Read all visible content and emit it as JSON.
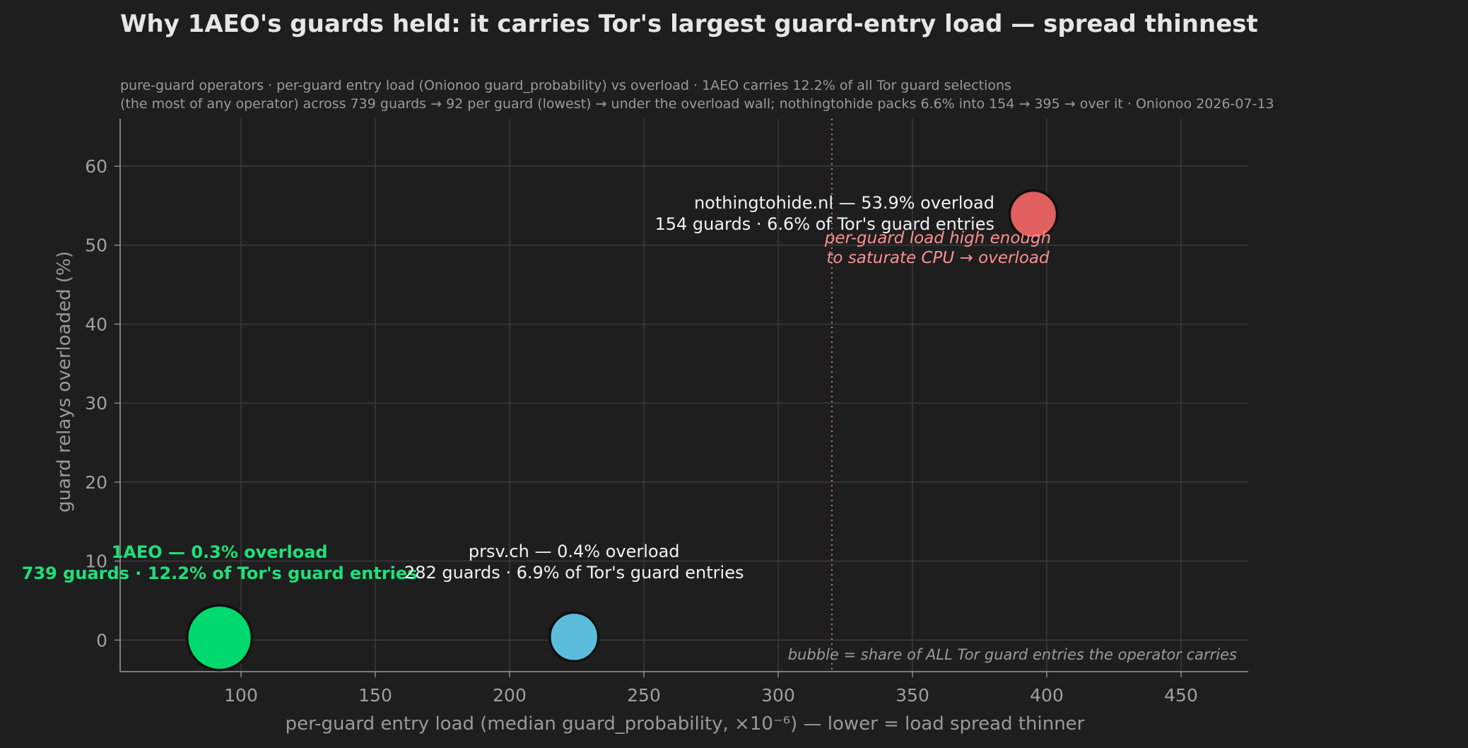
{
  "chart_data": {
    "type": "scatter",
    "title": "Why 1AEO's guards held: it carries Tor's largest guard-entry load — spread thinnest",
    "subtitle": [
      "pure-guard operators · per-guard entry load (Onionoo guard_probability) vs overload · 1AEO carries 12.2% of all Tor guard selections",
      "(the most of any operator) across 739 guards → 92 per guard (lowest) → under the overload wall; nothingtohide packs 6.6% into 154 → 395 → over it · Onionoo 2026-07-13"
    ],
    "xlabel": "per-guard entry load  (median guard_probability, ×10⁻⁶)  — lower = load spread thinner",
    "ylabel": "guard relays overloaded  (%)",
    "xlim": [
      55,
      475
    ],
    "ylim": [
      -4,
      66
    ],
    "xticks": [
      100,
      150,
      200,
      250,
      300,
      350,
      400,
      450
    ],
    "yticks": [
      0,
      10,
      20,
      30,
      40,
      50,
      60
    ],
    "grid": true,
    "overload_wall_x": 320,
    "wall_note": [
      "per-guard load high enough",
      "to saturate CPU → overload"
    ],
    "bubble_note": "bubble = share of ALL Tor guard entries the operator carries",
    "points": [
      {
        "name": "1AEO",
        "x": 92,
        "y": 0.3,
        "share": 12.2,
        "guards": 739,
        "color": "#00d96e",
        "highlight": true,
        "label": [
          "1AEO — 0.3% overload",
          "739 guards · 12.2% of Tor's guard entries"
        ]
      },
      {
        "name": "prsv.ch",
        "x": 224,
        "y": 0.4,
        "share": 6.9,
        "guards": 282,
        "color": "#5bbcdc",
        "highlight": false,
        "label": [
          "prsv.ch — 0.4% overload",
          "282 guards · 6.9% of Tor's guard entries"
        ]
      },
      {
        "name": "nothingtohide.nl",
        "x": 395,
        "y": 53.9,
        "share": 6.6,
        "guards": 154,
        "color": "#e05f5f",
        "highlight": false,
        "label": [
          "nothingtohide.nl — 53.9% overload",
          "154 guards · 6.6% of Tor's guard entries"
        ]
      }
    ]
  }
}
